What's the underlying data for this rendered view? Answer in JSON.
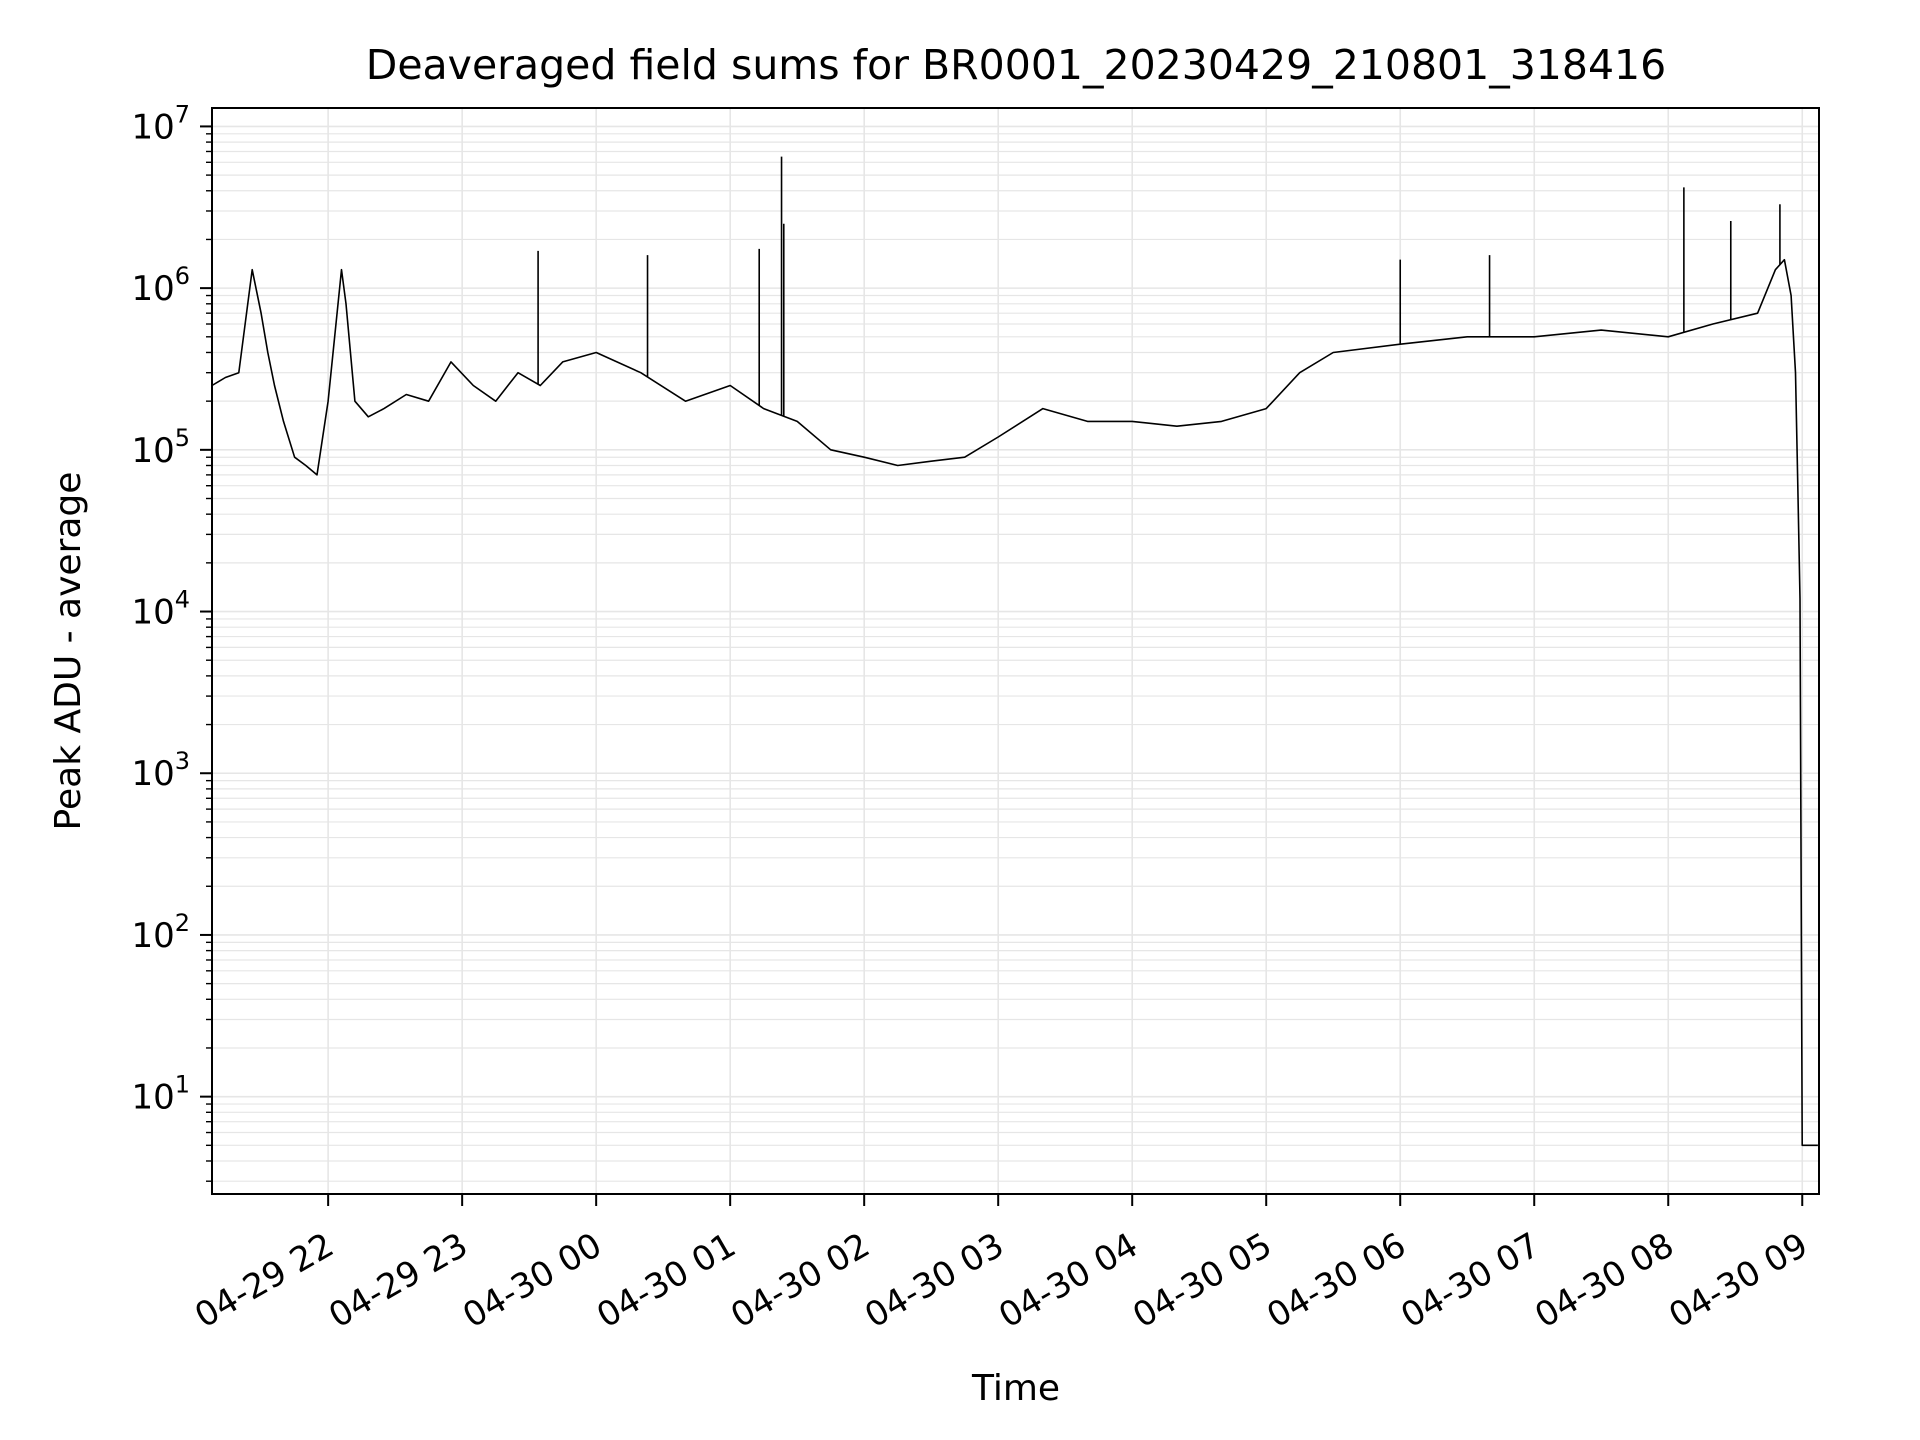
{
  "chart_data": {
    "type": "line",
    "title": "Deaveraged field sums for BR0001_20230429_210801_318416",
    "xlabel": "Time",
    "ylabel": "Peak ADU - average",
    "yscale": "log",
    "ylim": [
      2.5,
      13000000
    ],
    "xlim": [
      "2023-04-29 21:08:00",
      "2023-04-30 09:07:30"
    ],
    "grid": true,
    "line_color": "#000000",
    "grid_color": "#e6e6e6",
    "x_ticks": [
      {
        "value": "2023-04-29 22:00",
        "label": "04-29 22"
      },
      {
        "value": "2023-04-29 23:00",
        "label": "04-29 23"
      },
      {
        "value": "2023-04-30 00:00",
        "label": "04-30 00"
      },
      {
        "value": "2023-04-30 01:00",
        "label": "04-30 01"
      },
      {
        "value": "2023-04-30 02:00",
        "label": "04-30 02"
      },
      {
        "value": "2023-04-30 03:00",
        "label": "04-30 03"
      },
      {
        "value": "2023-04-30 04:00",
        "label": "04-30 04"
      },
      {
        "value": "2023-04-30 05:00",
        "label": "04-30 05"
      },
      {
        "value": "2023-04-30 06:00",
        "label": "04-30 06"
      },
      {
        "value": "2023-04-30 07:00",
        "label": "04-30 07"
      },
      {
        "value": "2023-04-30 08:00",
        "label": "04-30 08"
      },
      {
        "value": "2023-04-30 09:00",
        "label": "04-30 09"
      }
    ],
    "y_ticks": [
      {
        "value": 10,
        "base": "10",
        "exp": "1"
      },
      {
        "value": 100,
        "base": "10",
        "exp": "2"
      },
      {
        "value": 1000,
        "base": "10",
        "exp": "3"
      },
      {
        "value": 10000,
        "base": "10",
        "exp": "4"
      },
      {
        "value": 100000,
        "base": "10",
        "exp": "5"
      },
      {
        "value": 1000000,
        "base": "10",
        "exp": "6"
      },
      {
        "value": 10000000,
        "base": "10",
        "exp": "7"
      }
    ],
    "series": [
      {
        "x": [
          "2023-04-29 21:08",
          "2023-04-29 21:14",
          "2023-04-29 21:20",
          "2023-04-29 21:26",
          "2023-04-29 21:30",
          "2023-04-29 21:33",
          "2023-04-29 21:36",
          "2023-04-29 21:40",
          "2023-04-29 21:45",
          "2023-04-29 21:50",
          "2023-04-29 21:55",
          "2023-04-29 22:00",
          "2023-04-29 22:06",
          "2023-04-29 22:08",
          "2023-04-29 22:12",
          "2023-04-29 22:18",
          "2023-04-29 22:25",
          "2023-04-29 22:35",
          "2023-04-29 22:45",
          "2023-04-29 22:55",
          "2023-04-29 23:05",
          "2023-04-29 23:15",
          "2023-04-29 23:25",
          "2023-04-29 23:35",
          "2023-04-29 23:45",
          "2023-04-30 00:00",
          "2023-04-30 00:20",
          "2023-04-30 00:40",
          "2023-04-30 01:00",
          "2023-04-30 01:15",
          "2023-04-30 01:30",
          "2023-04-30 01:45",
          "2023-04-30 02:00",
          "2023-04-30 02:15",
          "2023-04-30 02:30",
          "2023-04-30 02:45",
          "2023-04-30 03:00",
          "2023-04-30 03:20",
          "2023-04-30 03:40",
          "2023-04-30 04:00",
          "2023-04-30 04:20",
          "2023-04-30 04:40",
          "2023-04-30 05:00",
          "2023-04-30 05:15",
          "2023-04-30 05:30",
          "2023-04-30 06:00",
          "2023-04-30 06:30",
          "2023-04-30 07:00",
          "2023-04-30 07:30",
          "2023-04-30 08:00",
          "2023-04-30 08:20",
          "2023-04-30 08:40",
          "2023-04-30 08:48",
          "2023-04-30 08:52",
          "2023-04-30 08:55",
          "2023-04-30 08:57",
          "2023-04-30 08:58",
          "2023-04-30 08:59",
          "2023-04-30 09:00",
          "2023-04-30 09:07"
        ],
        "y": [
          250000,
          280000,
          300000,
          1300000,
          700000,
          400000,
          250000,
          150000,
          90000,
          80000,
          70000,
          200000,
          1300000,
          800000,
          200000,
          160000,
          180000,
          220000,
          200000,
          350000,
          250000,
          200000,
          300000,
          250000,
          350000,
          400000,
          300000,
          200000,
          250000,
          180000,
          150000,
          100000,
          90000,
          80000,
          85000,
          90000,
          120000,
          180000,
          150000,
          150000,
          140000,
          150000,
          180000,
          300000,
          400000,
          450000,
          500000,
          500000,
          550000,
          500000,
          600000,
          700000,
          1300000,
          1500000,
          900000,
          300000,
          60000,
          12000,
          5,
          5
        ],
        "spikes": [
          {
            "x": "2023-04-29 23:34",
            "y": 1700000
          },
          {
            "x": "2023-04-30 00:23",
            "y": 1600000
          },
          {
            "x": "2023-04-30 01:13",
            "y": 1750000
          },
          {
            "x": "2023-04-30 01:23",
            "y": 6500000
          },
          {
            "x": "2023-04-30 01:24",
            "y": 2500000
          },
          {
            "x": "2023-04-30 06:00",
            "y": 1500000
          },
          {
            "x": "2023-04-30 06:40",
            "y": 1600000
          },
          {
            "x": "2023-04-30 08:07",
            "y": 4200000
          },
          {
            "x": "2023-04-30 08:28",
            "y": 2600000
          },
          {
            "x": "2023-04-30 08:50",
            "y": 3300000
          }
        ]
      }
    ]
  }
}
